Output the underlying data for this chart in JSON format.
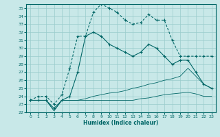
{
  "xlabel": "Humidex (Indice chaleur)",
  "xlim": [
    -0.5,
    23.5
  ],
  "ylim": [
    22,
    35.5
  ],
  "yticks": [
    22,
    23,
    24,
    25,
    26,
    27,
    28,
    29,
    30,
    31,
    32,
    33,
    34,
    35
  ],
  "xticks": [
    0,
    1,
    2,
    3,
    4,
    5,
    6,
    7,
    8,
    9,
    10,
    11,
    12,
    13,
    14,
    15,
    16,
    17,
    18,
    19,
    20,
    21,
    22,
    23
  ],
  "background_color": "#c8e8e8",
  "grid_color": "#99cccc",
  "line_color": "#006666",
  "line1_x": [
    0,
    1,
    2,
    3,
    4,
    5,
    6,
    7,
    8,
    9,
    10,
    11,
    12,
    13,
    14,
    15,
    16,
    17,
    18,
    19,
    20,
    21,
    22,
    23
  ],
  "line1_y": [
    23.5,
    24.0,
    24.0,
    23.0,
    24.2,
    27.5,
    31.5,
    31.5,
    34.5,
    35.5,
    35.0,
    34.5,
    33.5,
    33.0,
    33.2,
    34.2,
    33.5,
    33.5,
    31.0,
    29.0,
    29.0,
    29.0,
    29.0,
    29.0
  ],
  "line2_x": [
    0,
    1,
    2,
    3,
    4,
    5,
    6,
    7,
    8,
    9,
    10,
    11,
    12,
    13,
    14,
    15,
    16,
    17,
    18,
    19,
    20,
    21,
    22,
    23
  ],
  "line2_y": [
    23.5,
    23.5,
    23.5,
    22.5,
    23.5,
    24.0,
    27.0,
    31.5,
    32.0,
    31.5,
    30.5,
    30.0,
    29.5,
    29.0,
    29.5,
    30.5,
    30.0,
    29.0,
    28.0,
    28.5,
    28.5,
    27.0,
    25.5,
    25.0
  ],
  "line3_x": [
    0,
    1,
    2,
    3,
    4,
    5,
    6,
    7,
    8,
    9,
    10,
    11,
    12,
    13,
    14,
    15,
    16,
    17,
    18,
    19,
    20,
    21,
    22,
    23
  ],
  "line3_y": [
    23.5,
    23.5,
    23.5,
    22.2,
    23.5,
    23.5,
    23.5,
    23.7,
    24.0,
    24.2,
    24.4,
    24.5,
    24.7,
    25.0,
    25.2,
    25.5,
    25.7,
    26.0,
    26.2,
    26.5,
    27.5,
    26.5,
    25.5,
    25.0
  ],
  "line4_x": [
    0,
    1,
    2,
    3,
    4,
    5,
    6,
    7,
    8,
    9,
    10,
    11,
    12,
    13,
    14,
    15,
    16,
    17,
    18,
    19,
    20,
    21,
    22,
    23
  ],
  "line4_y": [
    23.5,
    23.5,
    23.5,
    22.2,
    23.5,
    23.5,
    23.5,
    23.5,
    23.5,
    23.5,
    23.5,
    23.5,
    23.5,
    23.5,
    23.7,
    23.8,
    24.0,
    24.2,
    24.3,
    24.4,
    24.5,
    24.3,
    24.0,
    24.0
  ]
}
